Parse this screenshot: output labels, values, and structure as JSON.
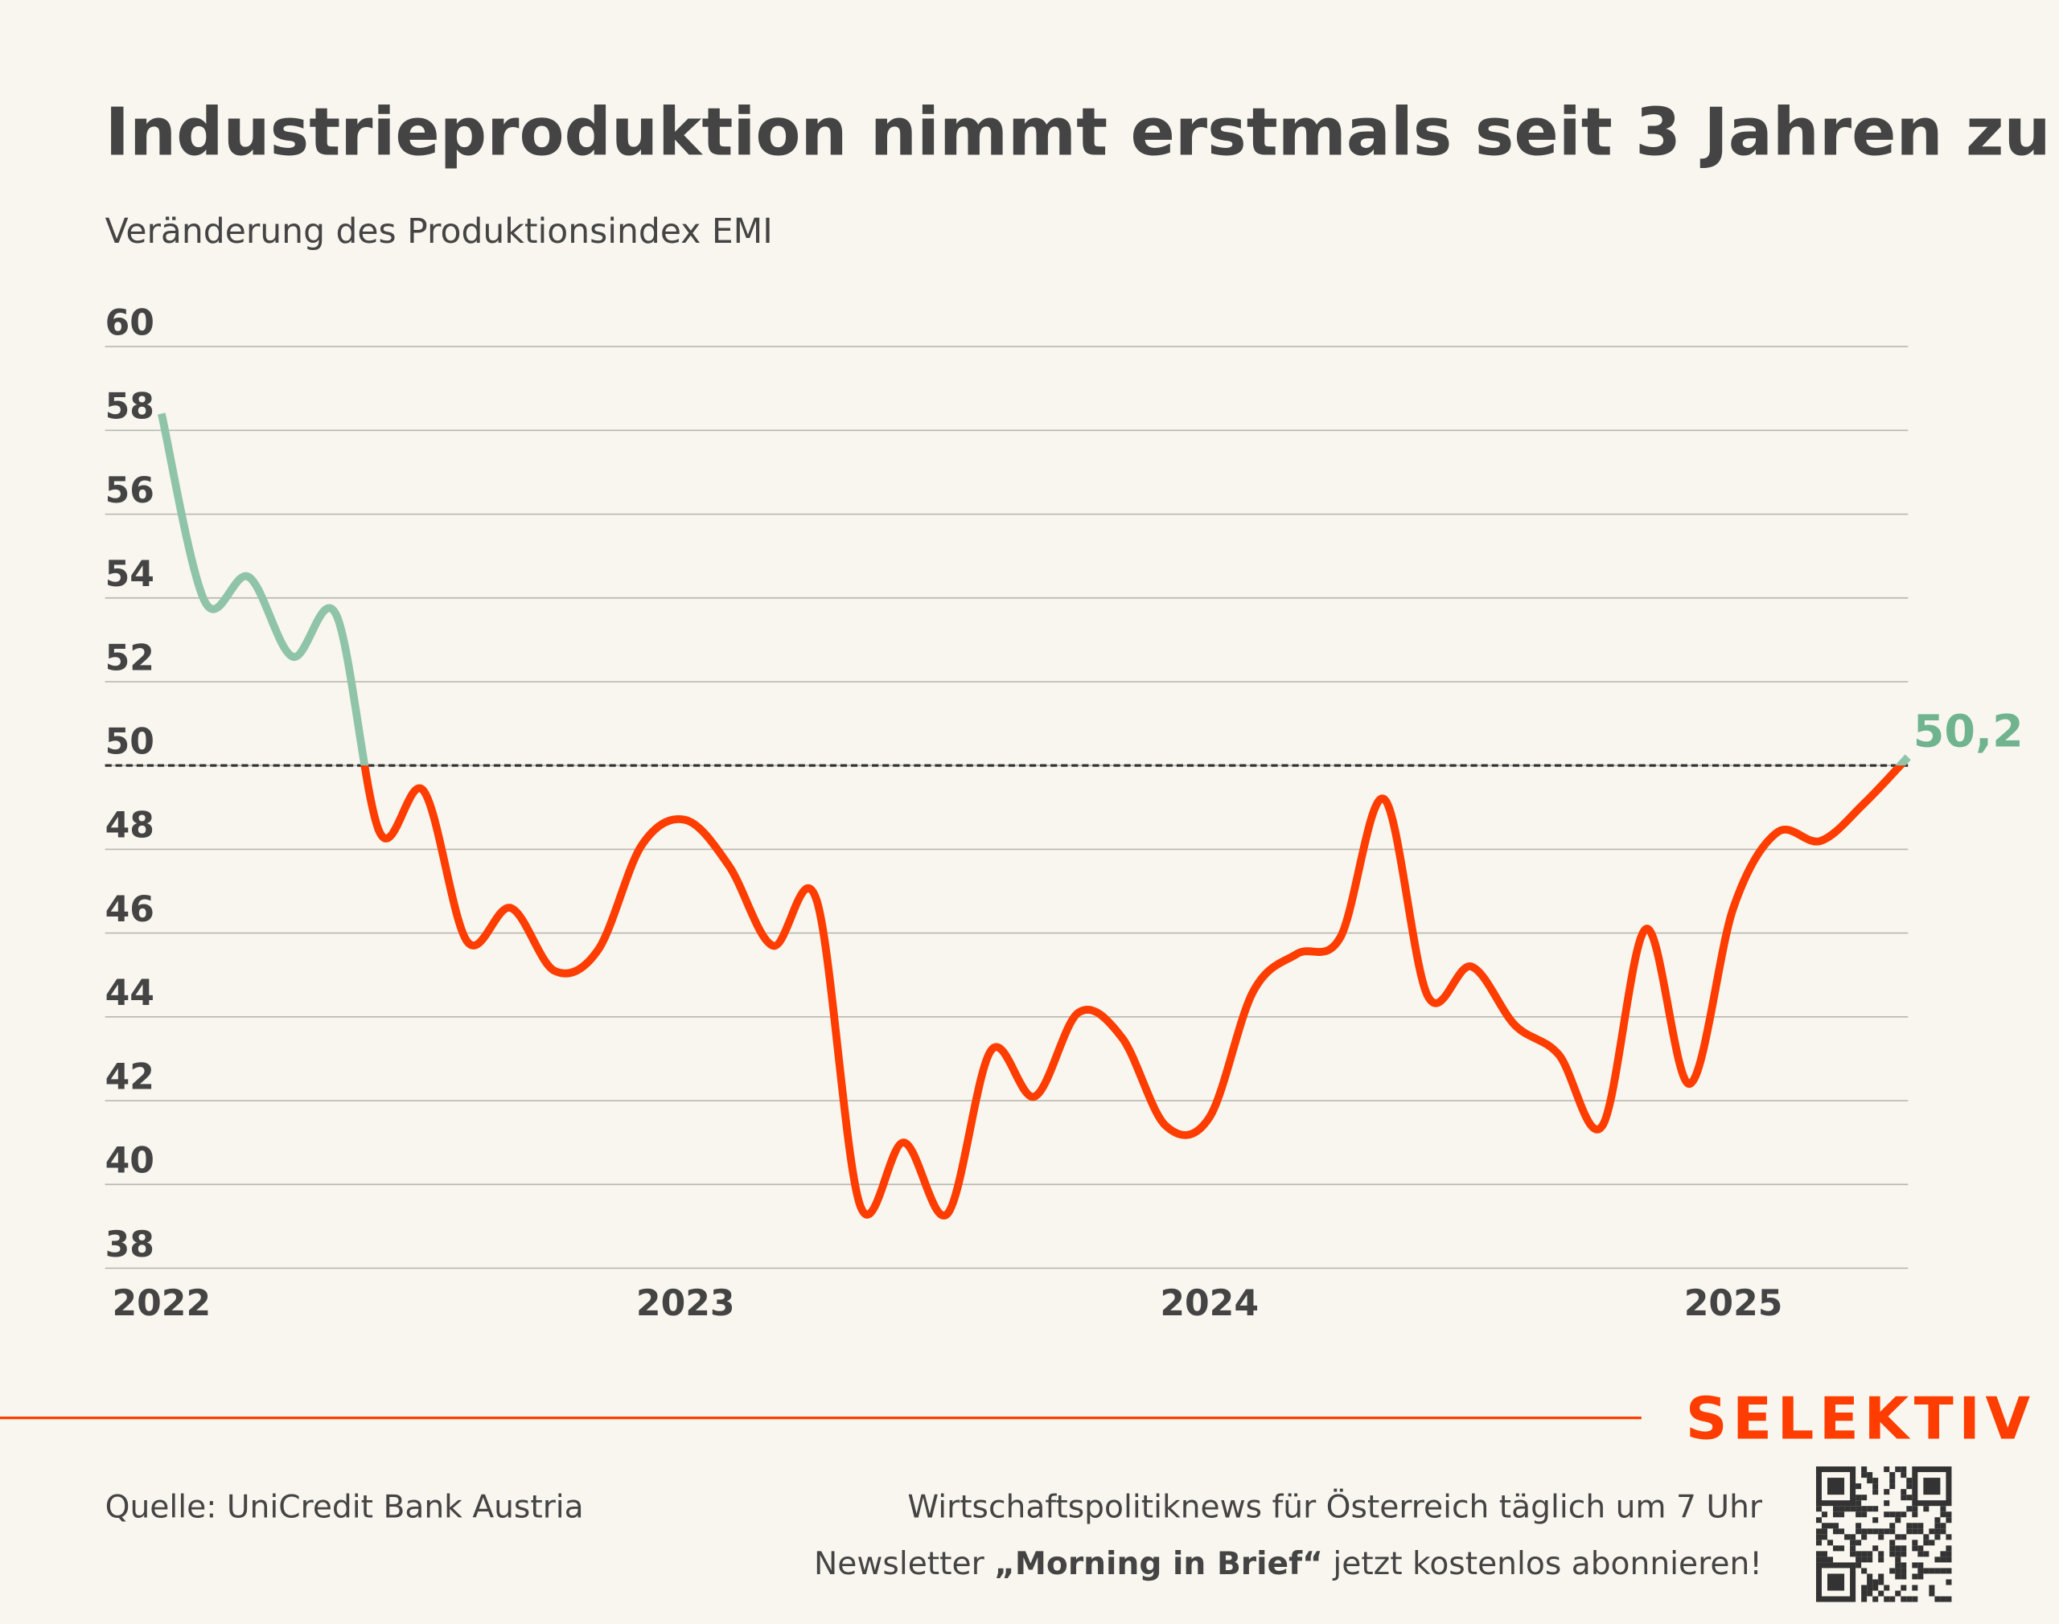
{
  "chart_data": {
    "type": "line",
    "title": "Industrieproduktion nimmt erstmals seit 3 Jahren zu",
    "subtitle": "Veränderung des Produktionsindex EMI",
    "categories": [
      "2022",
      null,
      null,
      null,
      null,
      null,
      null,
      null,
      null,
      null,
      null,
      null,
      "2023",
      null,
      null,
      null,
      null,
      null,
      null,
      null,
      null,
      null,
      null,
      null,
      "2024",
      null,
      null,
      null,
      null,
      null,
      null,
      null,
      null,
      null,
      null,
      null,
      "2025",
      null,
      null,
      null,
      null
    ],
    "series": [
      {
        "name": "EMI",
        "color_above": "#8fc4a8",
        "color_below": "#ff3d00",
        "values": [
          58.4,
          53.9,
          54.5,
          52.6,
          53.6,
          48.4,
          49.4,
          45.8,
          46.6,
          45.1,
          45.6,
          48.1,
          48.7,
          47.6,
          45.7,
          46.8,
          39.5,
          41.0,
          39.3,
          43.2,
          42.1,
          44.1,
          43.5,
          41.4,
          41.6,
          44.6,
          45.5,
          45.9,
          49.2,
          44.5,
          45.2,
          43.8,
          43.1,
          41.4,
          46.1,
          42.4,
          46.6,
          48.4,
          48.2,
          49.1,
          50.2
        ],
        "value_labels": [
          null,
          null,
          null,
          null,
          null,
          null,
          null,
          null,
          null,
          null,
          null,
          null,
          null,
          null,
          null,
          null,
          null,
          null,
          null,
          null,
          null,
          null,
          null,
          null,
          null,
          null,
          null,
          null,
          null,
          null,
          null,
          null,
          null,
          null,
          null,
          null,
          null,
          null,
          null,
          null,
          "50,2"
        ]
      }
    ],
    "threshold": 50,
    "ylim": [
      38,
      60
    ],
    "yticks": [
      38,
      40,
      42,
      44,
      46,
      48,
      50,
      52,
      54,
      56,
      58,
      60
    ],
    "grid": true
  },
  "footer": {
    "source": "Quelle: UniCredit Bank Austria",
    "brand": "SELEKTIV",
    "line1": "Wirtschaftspolitiknews für Österreich täglich um 7 Uhr",
    "line2": [
      "Newsletter ",
      "„Morning in Brief“",
      " jetzt kostenlos abonnieren!"
    ]
  }
}
